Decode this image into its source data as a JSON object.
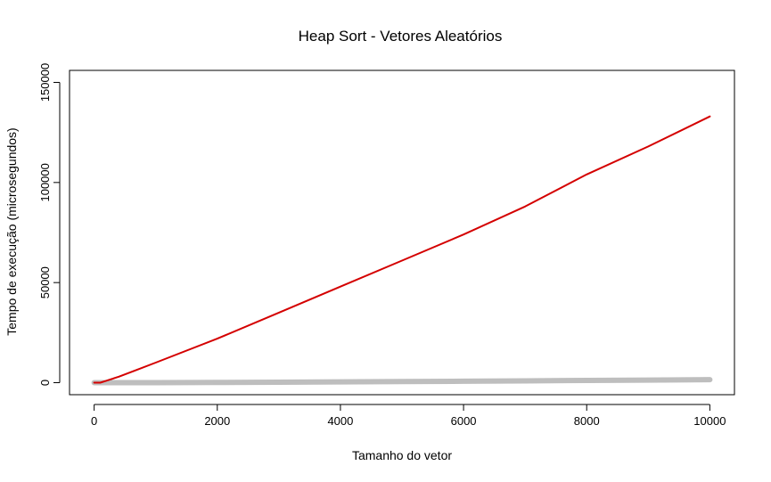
{
  "chart_data": {
    "type": "line",
    "title": "Heap Sort - Vetores Aleatórios",
    "xlabel": "Tamanho do vetor",
    "ylabel": "Tempo de execução (microsegundos)",
    "xlim": [
      -400,
      10400
    ],
    "ylim": [
      -6000,
      156000
    ],
    "x_ticks": [
      0,
      2000,
      4000,
      6000,
      8000,
      10000
    ],
    "y_ticks": [
      0,
      50000,
      100000,
      150000
    ],
    "x_tick_labels": [
      "0",
      "2000",
      "4000",
      "6000",
      "8000",
      "10000"
    ],
    "y_tick_labels": [
      "0",
      "50000",
      "100000",
      "150000"
    ],
    "grid": false,
    "series": [
      {
        "color": "#d40000",
        "x": [
          0,
          100,
          200,
          400,
          700,
          1000,
          2000,
          3000,
          4000,
          5000,
          6000,
          7000,
          8000,
          9000,
          10000
        ],
        "y": [
          0,
          0,
          1000,
          3000,
          6500,
          10000,
          22000,
          35000,
          48000,
          61000,
          74000,
          88000,
          104000,
          118000,
          133000
        ]
      },
      {
        "color": "#bebebe",
        "x": [
          0,
          500,
          1000,
          2000,
          3000,
          4000,
          5000,
          6000,
          7000,
          8000,
          9000,
          10000
        ],
        "y": [
          0,
          0,
          0,
          100,
          250,
          400,
          550,
          700,
          900,
          1100,
          1300,
          1500
        ]
      }
    ]
  }
}
